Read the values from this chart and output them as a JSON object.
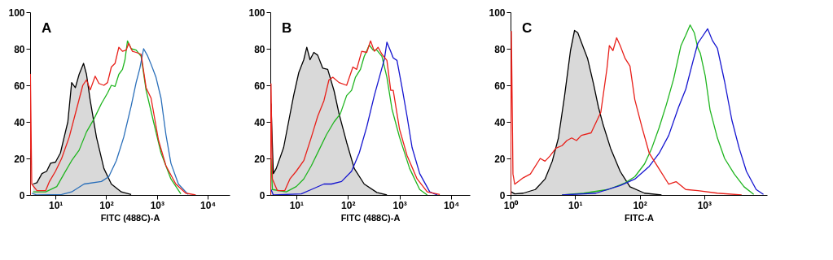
{
  "chart_data": [
    {
      "type": "line",
      "annotations": [
        "A"
      ],
      "xlabel": "FITC (488C)-A",
      "log": "x",
      "xlim": [
        3.16,
        27000
      ],
      "xticks": [
        {
          "value": 10,
          "label": "10¹"
        },
        {
          "value": 100,
          "label": "10²"
        },
        {
          "value": 1000,
          "label": "10³"
        },
        {
          "value": 10000,
          "label": "10⁴"
        }
      ],
      "ylim": [
        0,
        100
      ],
      "yticks": [
        0,
        20,
        40,
        60,
        80,
        100
      ],
      "series": [
        {
          "type": "area",
          "color": "#000000",
          "x": [
            3.6,
            4.3,
            5.4,
            6.7,
            8.0,
            10,
            12.5,
            14.8,
            17.5,
            20.8,
            24.6,
            29.2,
            35.7,
            40.8,
            48.4,
            64.1,
            89.9,
            126,
            198,
            310
          ],
          "values": [
            6,
            6.7,
            11.7,
            13,
            17.4,
            18,
            23,
            31.6,
            40,
            61.5,
            58.7,
            66,
            72,
            66,
            51.6,
            31.6,
            14.5,
            6,
            1.7,
            0.3
          ]
        },
        {
          "color": "#1fb51f",
          "x": [
            3.6,
            6.4,
            10.6,
            14.8,
            20.8,
            29.2,
            40.8,
            57.3,
            80.3,
            106,
            126,
            149,
            177,
            209,
            234,
            262,
            310,
            388,
            486,
            610,
            855,
            1200,
            1880,
            2950
          ],
          "values": [
            1.7,
            1.7,
            4.6,
            11.7,
            18.8,
            24.5,
            34.5,
            41.6,
            50,
            55.8,
            60,
            59.4,
            66,
            68.7,
            74,
            84.3,
            80,
            79.3,
            75.8,
            57.3,
            40,
            23,
            8.8,
            0.6
          ]
        },
        {
          "color": "#2a6fba",
          "x": [
            3.4,
            4.3,
            13.2,
            20.8,
            36.5,
            80.3,
            112,
            158,
            221,
            310,
            388,
            460,
            545,
            645,
            764,
            955,
            1200,
            1500,
            1880,
            2640,
            4130
          ],
          "values": [
            1,
            0,
            0.3,
            1.7,
            6,
            7.4,
            10,
            18.8,
            31.6,
            48.7,
            61.5,
            69.4,
            80,
            76.4,
            71.5,
            64.4,
            53,
            33,
            17.4,
            6,
            0.3
          ]
        },
        {
          "color": "#e8201a",
          "x": [
            3.16,
            3.2,
            3.4,
            4.3,
            6.4,
            7.6,
            10,
            13.2,
            18.6,
            26,
            34.5,
            40.8,
            48.4,
            60.5,
            71.8,
            89.9,
            106,
            126,
            149,
            177,
            209,
            248,
            277,
            328,
            388,
            486,
            610,
            764,
            1070,
            1500,
            2350,
            3690,
            5790
          ],
          "values": [
            0,
            66,
            6,
            2.4,
            2.4,
            7.4,
            13,
            20,
            31.6,
            47,
            60,
            63,
            57.5,
            65,
            61,
            60,
            61.5,
            70,
            72,
            80.8,
            78.6,
            79.3,
            83,
            78.6,
            78,
            77,
            58.7,
            53,
            30,
            16,
            6,
            1,
            0
          ]
        }
      ]
    },
    {
      "type": "line",
      "annotations": [
        "B"
      ],
      "xlabel": "FITC (488C)-A",
      "log": "x",
      "xlim": [
        3.15,
        23000
      ],
      "xticks": [
        {
          "value": 10,
          "label": "10¹"
        },
        {
          "value": 100,
          "label": "10²"
        },
        {
          "value": 1000,
          "label": "10³"
        },
        {
          "value": 10000,
          "label": "10⁴"
        }
      ],
      "ylim": [
        0,
        100
      ],
      "yticks": [
        0,
        20,
        40,
        60,
        80,
        100
      ],
      "series": [
        {
          "type": "area",
          "color": "#000000",
          "x": [
            3.25,
            3.6,
            4.1,
            5.7,
            7.1,
            8.9,
            11.2,
            14,
            16,
            18.5,
            21.9,
            26,
            32.5,
            40.7,
            54,
            67.5,
            94.6,
            133,
            207,
            364,
            570
          ],
          "values": [
            50,
            11.7,
            14.5,
            26,
            40,
            54.4,
            67,
            74,
            80.8,
            74,
            78,
            76.5,
            69.4,
            68.7,
            57,
            44.4,
            28.8,
            14.5,
            6,
            1.4,
            0
          ]
        },
        {
          "color": "#1fb51f",
          "x": [
            3.25,
            3.45,
            6.4,
            10,
            14,
            19.6,
            27.5,
            38.5,
            54,
            71.4,
            94.6,
            118,
            140,
            175,
            207,
            260,
            308,
            364,
            456,
            570,
            714,
            1000,
            1570,
            2460,
            3440
          ],
          "values": [
            20,
            3,
            1.7,
            4.6,
            8.8,
            16,
            24.5,
            33,
            40,
            44.4,
            54.4,
            57.3,
            64.4,
            68.7,
            75.8,
            82,
            79.3,
            79.3,
            75.8,
            64.4,
            47,
            31.6,
            14.5,
            3,
            0
          ]
        },
        {
          "color": "#1515d0",
          "x": [
            3.25,
            3.6,
            12.5,
            19.6,
            34.4,
            48,
            75.5,
            118,
            166,
            232,
            325,
            407,
            510,
            570,
            675,
            755,
            893,
            1120,
            1400,
            1750,
            2460,
            3850,
            5400
          ],
          "values": [
            3,
            0,
            0.6,
            3,
            6,
            6,
            7.4,
            13,
            23,
            37.3,
            54.4,
            64.4,
            74.4,
            83.6,
            78.6,
            75,
            73.6,
            58.7,
            43,
            26,
            11.7,
            1.7,
            0
          ]
        },
        {
          "color": "#e8201a",
          "x": [
            3.18,
            3.25,
            3.45,
            4.3,
            6.0,
            7.55,
            10,
            14,
            19.6,
            26,
            34.4,
            43,
            51,
            67.5,
            94.6,
            125,
            148,
            185,
            232,
            275,
            325,
            385,
            456,
            570,
            675,
            755,
            1000,
            1400,
            2190,
            3440,
            6030
          ],
          "values": [
            0,
            60.8,
            8.8,
            2.4,
            2.4,
            8.8,
            13,
            18.8,
            31.6,
            43,
            51.6,
            63,
            64.4,
            61.5,
            60,
            70,
            68.7,
            78.6,
            78,
            84.3,
            78.6,
            80.8,
            77,
            73.6,
            57.3,
            57.3,
            36,
            21.6,
            8.8,
            1.7,
            0.3
          ]
        }
      ]
    },
    {
      "type": "line",
      "annotations": [
        "C"
      ],
      "xlabel": "FITC-A",
      "log": "x",
      "xlim": [
        1,
        9400
      ],
      "xticks": [
        {
          "value": 1,
          "label": "10⁰"
        },
        {
          "value": 10,
          "label": "10¹"
        },
        {
          "value": 100,
          "label": "10²"
        },
        {
          "value": 1000,
          "label": "10³"
        }
      ],
      "ylim": [
        0,
        100
      ],
      "yticks": [
        0,
        20,
        40,
        60,
        80,
        100
      ],
      "series": [
        {
          "type": "area",
          "color": "#000000",
          "x": [
            1.03,
            1.16,
            1.57,
            2.42,
            3.42,
            4.43,
            5.5,
            6.83,
            8.48,
            9.8,
            11,
            13.1,
            15.6,
            19.3,
            23,
            27.3,
            35.4,
            50,
            70.8,
            119,
            218
          ],
          "values": [
            1.7,
            0.6,
            1,
            3,
            8.7,
            18.5,
            31,
            53.6,
            79,
            90,
            88.8,
            81.7,
            74.7,
            60.7,
            48,
            38.2,
            25.6,
            12.9,
            4.5,
            1,
            0
          ]
        },
        {
          "color": "#1fb51f",
          "x": [
            6.27,
            13.6,
            32.4,
            59.5,
            84.1,
            119,
            154,
            200,
            259,
            336,
            436,
            518,
            605,
            701,
            798,
            871,
            1040,
            1230,
            1600,
            2070,
            2920,
            4140,
            5850
          ],
          "values": [
            0,
            1,
            3,
            6.6,
            10,
            17,
            25.6,
            36.8,
            49.4,
            63.5,
            81.7,
            87.4,
            93,
            88.8,
            80.3,
            77.5,
            64.9,
            46.6,
            31.2,
            20,
            11.5,
            4.5,
            0.3
          ]
        },
        {
          "color": "#1515d0",
          "x": [
            6.27,
            21,
            50,
            84.1,
            141,
            200,
            282,
            400,
            518,
            671,
            798,
            910,
            1130,
            1340,
            1600,
            2070,
            2680,
            3480,
            4510,
            6380,
            8270
          ],
          "values": [
            0,
            1,
            5.2,
            8.7,
            15.7,
            22.8,
            32.6,
            48,
            57.9,
            73.3,
            83.1,
            86,
            90.9,
            84.5,
            80.3,
            62,
            41,
            25.6,
            12.9,
            3,
            0.3
          ]
        },
        {
          "color": "#e8201a",
          "x": [
            1,
            1.03,
            1.09,
            1.16,
            1.57,
            2.03,
            2.88,
            3.42,
            4.06,
            5.05,
            6.27,
            7.45,
            8.86,
            10.5,
            12.5,
            17.7,
            25,
            31.1,
            33.9,
            38.6,
            44,
            50,
            59.5,
            70.8,
            84.1,
            109,
            141,
            200,
            282,
            366,
            518,
            798,
            1600,
            3800
          ],
          "values": [
            0,
            89.5,
            11.5,
            5.9,
            9.4,
            11.5,
            20,
            18.5,
            21.3,
            25.6,
            27,
            29.8,
            31.2,
            29.8,
            32.6,
            34,
            45.2,
            69,
            81.7,
            79,
            86,
            81.7,
            74.7,
            70.5,
            52.2,
            36.8,
            22.8,
            14.3,
            5.9,
            7.3,
            3,
            2.4,
            1,
            0
          ]
        }
      ]
    }
  ]
}
